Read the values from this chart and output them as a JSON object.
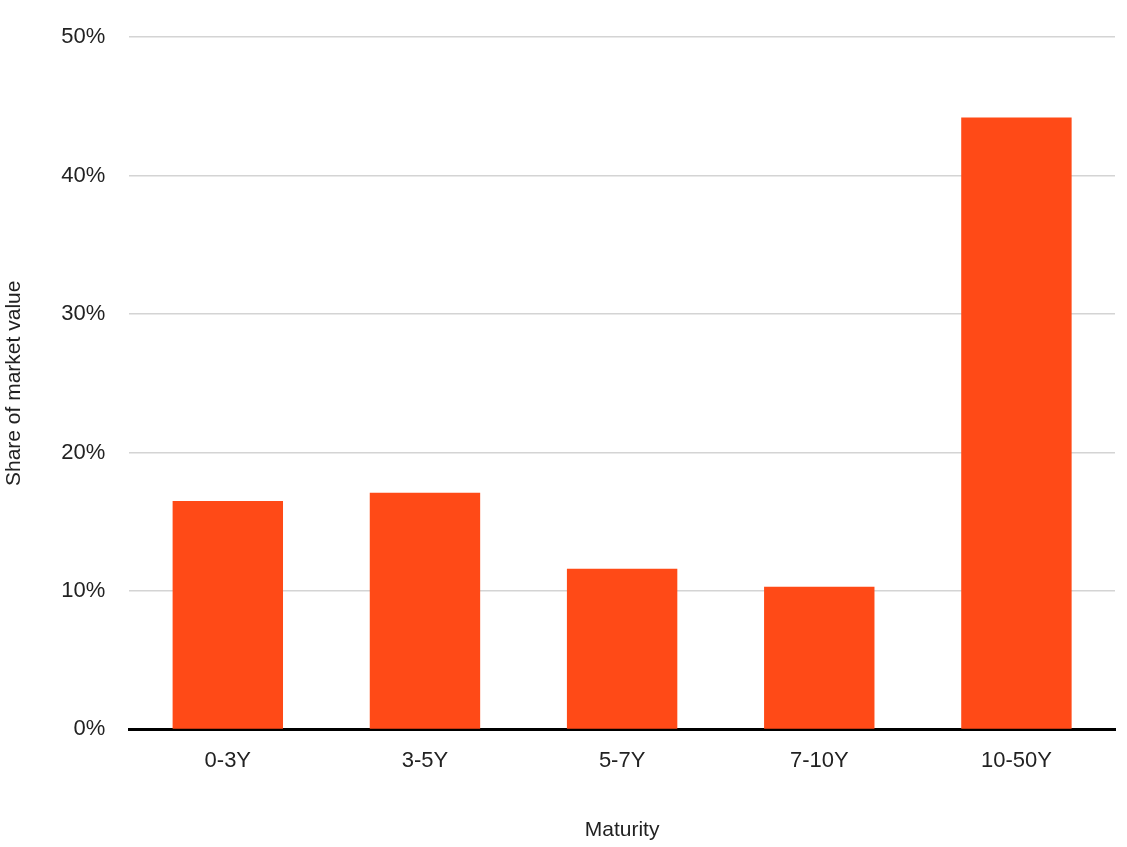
{
  "chart_data": {
    "type": "bar",
    "xlabel": "Maturity",
    "ylabel": "Share of market value",
    "categories": [
      "0-3Y",
      "3-5Y",
      "5-7Y",
      "7-10Y",
      "10-50Y"
    ],
    "values": [
      16.5,
      17.1,
      11.6,
      10.3,
      44.2
    ],
    "color": "#ff4a17",
    "ylim": [
      0,
      50
    ],
    "yticks": [
      {
        "value": 0,
        "label": "0%"
      },
      {
        "value": 10,
        "label": "10%"
      },
      {
        "value": 20,
        "label": "20%"
      },
      {
        "value": 30,
        "label": "30%"
      },
      {
        "value": 40,
        "label": "40%"
      },
      {
        "value": 50,
        "label": "50%"
      }
    ],
    "grid": "y",
    "legend": false
  }
}
